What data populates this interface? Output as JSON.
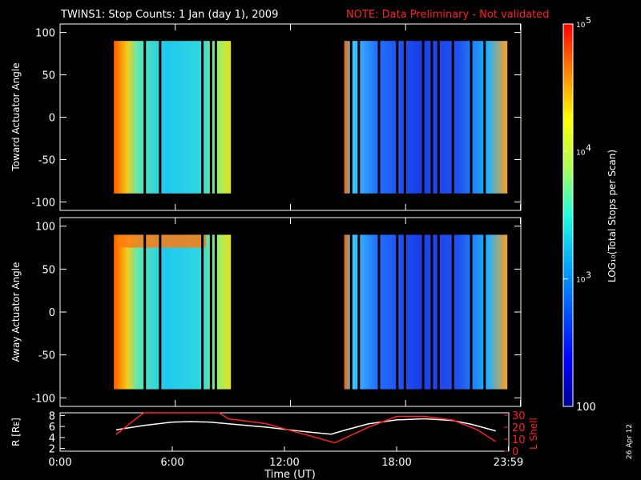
{
  "title": {
    "main": "TWINS1: Stop Counts:  1 Jan (day   1), 2009",
    "note": "NOTE: Data Preliminary - Not validated"
  },
  "footer": {
    "date_stamp": "26 Apr 12"
  },
  "colors": {
    "background": "#000000",
    "axis": "#ffffff",
    "lshell": "#ff2020",
    "note": "#ff2020"
  },
  "chart_data": [
    {
      "type": "heatmap",
      "ylabel": "Toward Actuator Angle",
      "ylim": [
        -110,
        110
      ],
      "yticks": [
        "100",
        "50",
        "0",
        "-50",
        "-100"
      ],
      "xlim_hours": [
        0,
        24
      ],
      "data_window_hours": [
        [
          2.8,
          8.9
        ],
        [
          14.8,
          23.3
        ]
      ],
      "data_angle_range": [
        -90,
        90
      ],
      "grid": false
    },
    {
      "type": "heatmap",
      "ylabel": "Away Actuator Angle",
      "ylim": [
        -110,
        110
      ],
      "yticks": [
        "100",
        "50",
        "0",
        "-50",
        "-100"
      ],
      "xlim_hours": [
        0,
        24
      ],
      "data_window_hours": [
        [
          2.8,
          8.9
        ],
        [
          14.8,
          23.3
        ]
      ],
      "data_angle_range": [
        -90,
        90
      ],
      "grid": false
    },
    {
      "type": "line",
      "ylabel": "R [Rᴇ]",
      "ylabel_right": "L Shell",
      "yticks_left": [
        "8",
        "6",
        "4",
        "2"
      ],
      "yticks_right": [
        "30",
        "20",
        "10",
        "0"
      ],
      "ylim_left": [
        1.5,
        8.5
      ],
      "ylim_right": [
        0,
        32
      ],
      "xlabel": "Time (UT)",
      "xticks": [
        "0:00",
        "6:00",
        "12:00",
        "18:00",
        "23:59"
      ],
      "xtick_hours": [
        0,
        6,
        12,
        18,
        23.98
      ],
      "series": [
        {
          "axis": "left",
          "x": [
            3.0,
            4.5,
            6.0,
            7.0,
            8.0,
            9.0,
            11.0,
            13.0,
            14.5,
            15.3,
            16.5,
            18.0,
            19.5,
            21.0,
            22.0,
            23.3
          ],
          "y": [
            5.4,
            6.2,
            6.8,
            6.9,
            6.8,
            6.5,
            5.9,
            5.1,
            4.6,
            5.4,
            6.5,
            7.2,
            7.4,
            7.1,
            6.4,
            5.2
          ]
        },
        {
          "axis": "right",
          "x": [
            3.0,
            4.3,
            4.5,
            8.5,
            9.0,
            11.0,
            14.7,
            16.5,
            18.0,
            19.5,
            21.0,
            22.3,
            23.3
          ],
          "y": [
            14,
            30,
            32,
            32,
            27,
            23,
            7,
            20,
            29,
            29,
            26,
            18,
            8
          ]
        }
      ]
    }
  ],
  "colorbar": {
    "label": "LOG₁₀(Total Stops per Scan)",
    "ticks": [
      {
        "sup": "5",
        "base": "10",
        "value_exp": 5
      },
      {
        "sup": "4",
        "base": "10",
        "value_exp": 4
      },
      {
        "sup": "3",
        "base": "10",
        "value_exp": 3
      },
      {
        "sup": "",
        "base": "100",
        "value_exp": 2
      }
    ],
    "range_exp": [
      2,
      5
    ]
  }
}
